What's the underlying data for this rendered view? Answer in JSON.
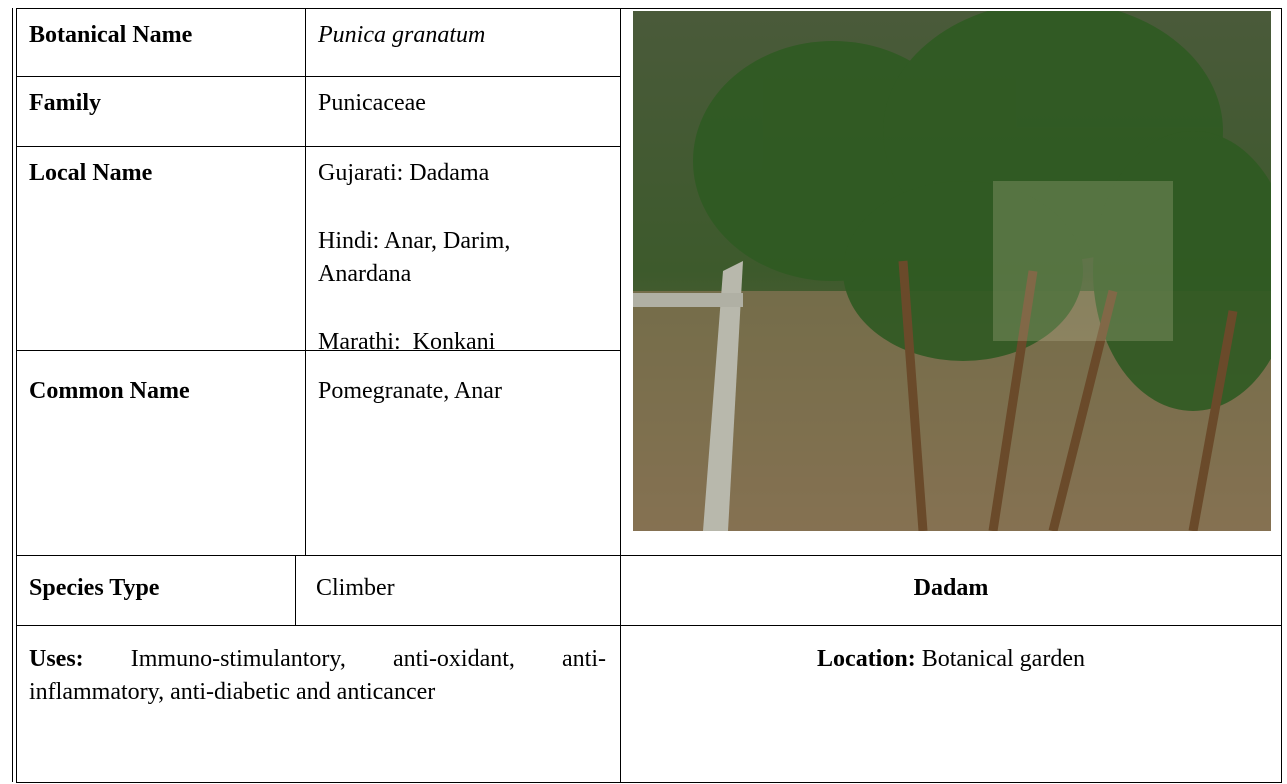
{
  "fields": [
    {
      "label": "Botanical Name",
      "value": "Punica granatum"
    },
    {
      "label": "Family",
      "value": "Punicaceae"
    },
    {
      "label": "Local Name",
      "values": [
        "Gujarati: Dadama",
        "Hindi: Anar, Darim, Anardana",
        "Marathi:  Konkani"
      ]
    },
    {
      "label": "Common Name",
      "value": "Pomegranate, Anar"
    },
    {
      "label": "Species Type",
      "value": "Climber"
    }
  ],
  "image_caption": "Dadam",
  "uses": {
    "label": "Uses:",
    "text": "Immuno-stimulantory, anti-oxidant, anti-inflammatory, anti-diabetic and anticancer"
  },
  "location": {
    "label": "Location:",
    "text": "Botanical garden"
  }
}
